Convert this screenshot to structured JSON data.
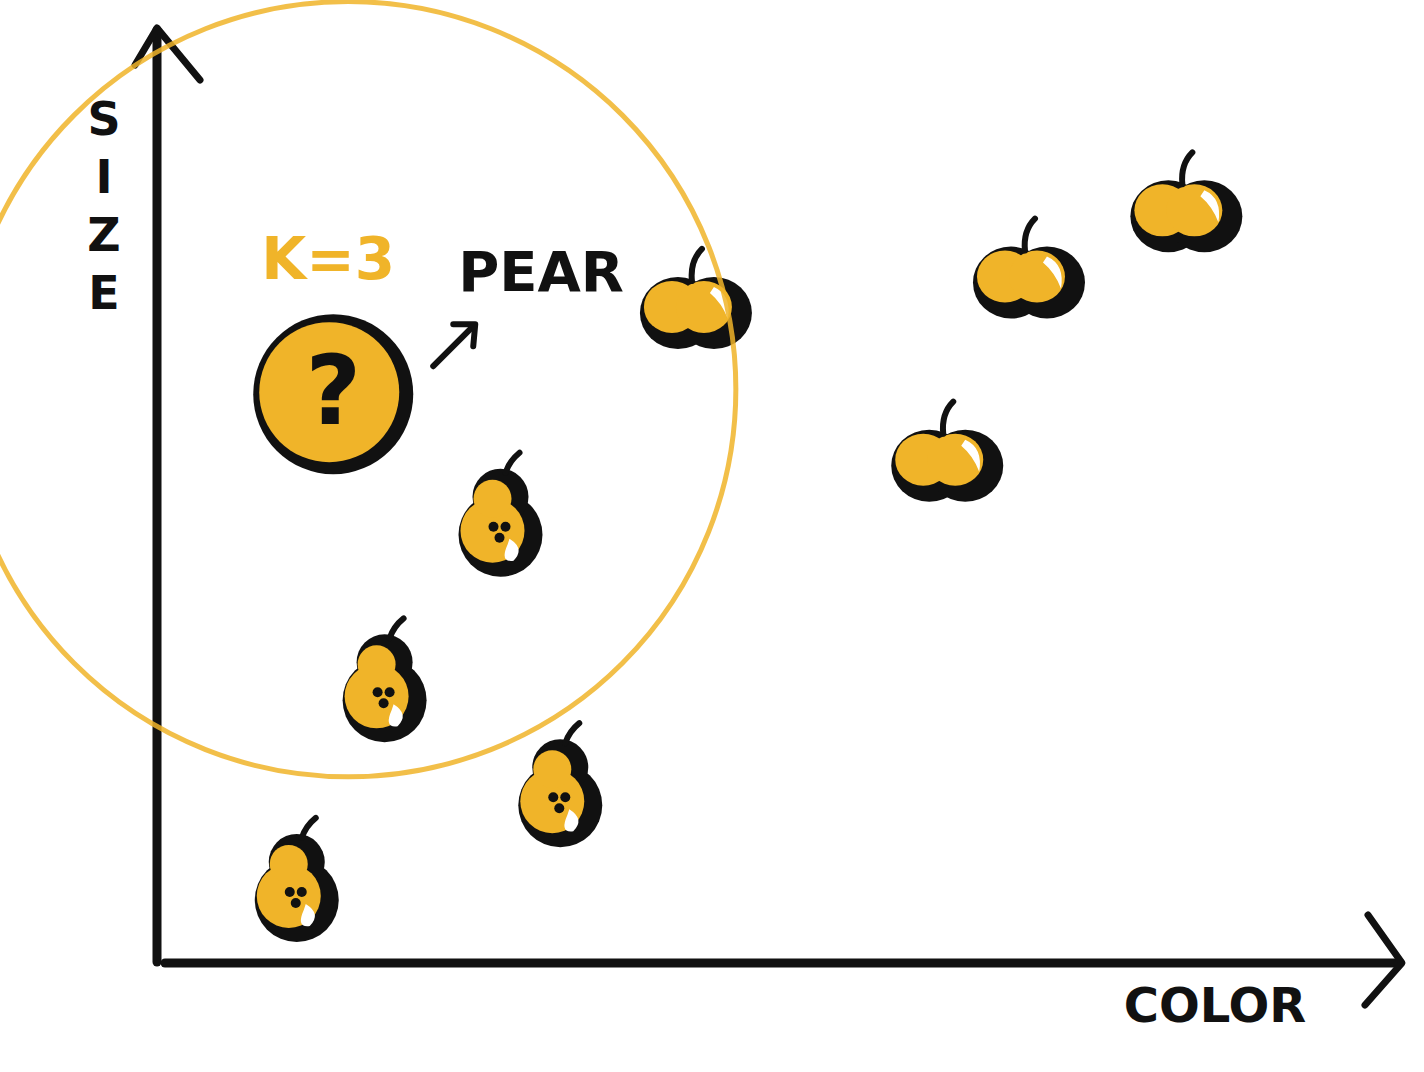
{
  "chart_data": {
    "type": "scatter",
    "x_label": "COLOR",
    "y_label": "SIZE",
    "xlim": [
      0,
      100
    ],
    "ylim": [
      0,
      100
    ],
    "xticks": [],
    "yticks": [],
    "tick_labels": false,
    "grid": false,
    "color": "#f0b429",
    "annotations": [
      "K=3",
      "PEAR",
      "?"
    ],
    "series": [
      {
        "marker": "apple",
        "x": [
          43.6,
          70.9,
          83.8,
          64.2
        ],
        "values": [
          71.2,
          74.5,
          81.7,
          54.6
        ]
      },
      {
        "marker": "pear",
        "x": [
          27.5,
          18.0,
          32.4,
          10.8
        ],
        "values": [
          48.4,
          30.4,
          19.0,
          8.7
        ]
      },
      {
        "marker": "query",
        "x": [
          14.2
        ],
        "values": [
          61.5
        ]
      }
    ]
  }
}
